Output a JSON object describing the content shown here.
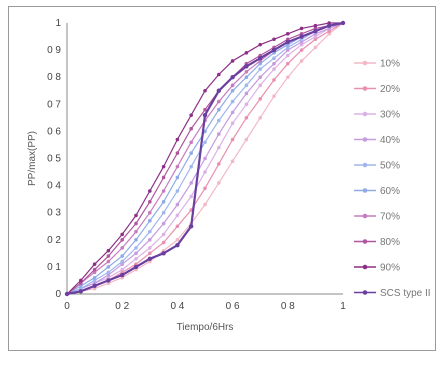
{
  "chart_data": {
    "type": "line",
    "xlabel": "Tiempo/6Hrs",
    "ylabel": "PP/max(PP)",
    "xlim": [
      0,
      1
    ],
    "ylim": [
      0,
      1
    ],
    "x_ticks": [
      "0",
      "0 2",
      "0 4",
      "0 6",
      "0 8",
      "1"
    ],
    "y_ticks": [
      "0",
      "0 1",
      "0 2",
      "0 3",
      "0 4",
      "0 5",
      "0 6",
      "0 7",
      "0 8",
      "0 9",
      "1"
    ],
    "grid": false,
    "legend_position": "right",
    "x": [
      0,
      0.05,
      0.1,
      0.15,
      0.2,
      0.25,
      0.3,
      0.35,
      0.4,
      0.45,
      0.5,
      0.55,
      0.6,
      0.65,
      0.7,
      0.75,
      0.8,
      0.85,
      0.9,
      0.95,
      1
    ],
    "series": [
      {
        "name": "10%",
        "color": "#f2b8c6",
        "values": [
          0,
          0.01,
          0.02,
          0.04,
          0.06,
          0.09,
          0.12,
          0.16,
          0.2,
          0.26,
          0.33,
          0.41,
          0.49,
          0.57,
          0.65,
          0.73,
          0.8,
          0.86,
          0.91,
          0.96,
          1
        ]
      },
      {
        "name": "20%",
        "color": "#e98fb0",
        "values": [
          0,
          0.01,
          0.03,
          0.05,
          0.08,
          0.11,
          0.15,
          0.19,
          0.25,
          0.31,
          0.39,
          0.48,
          0.57,
          0.65,
          0.72,
          0.79,
          0.85,
          0.9,
          0.94,
          0.97,
          1
        ]
      },
      {
        "name": "30%",
        "color": "#dcb2e6",
        "values": [
          0,
          0.02,
          0.04,
          0.06,
          0.09,
          0.13,
          0.17,
          0.22,
          0.29,
          0.36,
          0.45,
          0.54,
          0.63,
          0.7,
          0.77,
          0.83,
          0.88,
          0.92,
          0.95,
          0.98,
          1
        ]
      },
      {
        "name": "40%",
        "color": "#c69be0",
        "values": [
          0,
          0.02,
          0.04,
          0.07,
          0.11,
          0.15,
          0.2,
          0.26,
          0.33,
          0.41,
          0.5,
          0.59,
          0.67,
          0.74,
          0.8,
          0.85,
          0.9,
          0.93,
          0.96,
          0.98,
          1
        ]
      },
      {
        "name": "50%",
        "color": "#9fb6ee",
        "values": [
          0,
          0.02,
          0.05,
          0.08,
          0.12,
          0.17,
          0.23,
          0.3,
          0.38,
          0.47,
          0.56,
          0.64,
          0.71,
          0.77,
          0.83,
          0.87,
          0.91,
          0.94,
          0.97,
          0.99,
          1
        ]
      },
      {
        "name": "60%",
        "color": "#8faae6",
        "values": [
          0,
          0.03,
          0.06,
          0.1,
          0.14,
          0.2,
          0.27,
          0.34,
          0.43,
          0.52,
          0.6,
          0.68,
          0.75,
          0.8,
          0.85,
          0.89,
          0.92,
          0.95,
          0.97,
          0.99,
          1
        ]
      },
      {
        "name": "70%",
        "color": "#c77bbf",
        "values": [
          0,
          0.04,
          0.08,
          0.12,
          0.17,
          0.23,
          0.3,
          0.38,
          0.47,
          0.56,
          0.64,
          0.71,
          0.77,
          0.82,
          0.86,
          0.9,
          0.93,
          0.95,
          0.97,
          0.99,
          1
        ]
      },
      {
        "name": "80%",
        "color": "#b0569f",
        "values": [
          0,
          0.04,
          0.09,
          0.14,
          0.2,
          0.26,
          0.34,
          0.43,
          0.52,
          0.61,
          0.68,
          0.75,
          0.8,
          0.85,
          0.88,
          0.91,
          0.94,
          0.96,
          0.98,
          0.99,
          1
        ]
      },
      {
        "name": "90%",
        "color": "#8d2f86",
        "values": [
          0,
          0.05,
          0.11,
          0.16,
          0.22,
          0.29,
          0.38,
          0.47,
          0.57,
          0.66,
          0.75,
          0.81,
          0.86,
          0.89,
          0.92,
          0.94,
          0.96,
          0.98,
          0.99,
          1,
          1
        ]
      },
      {
        "name": "SCS type II",
        "color": "#6a3fa0",
        "values": [
          0,
          0.01,
          0.03,
          0.05,
          0.07,
          0.1,
          0.13,
          0.15,
          0.18,
          0.25,
          0.66,
          0.75,
          0.8,
          0.84,
          0.87,
          0.9,
          0.93,
          0.95,
          0.97,
          0.99,
          1
        ]
      }
    ]
  }
}
